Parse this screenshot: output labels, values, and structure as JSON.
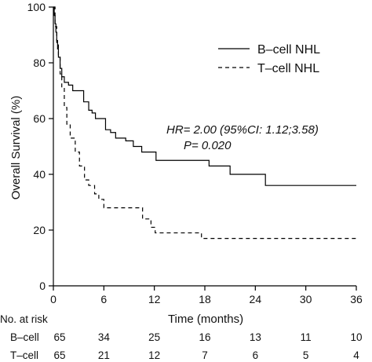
{
  "chart_data": {
    "type": "line",
    "xlabel": "Time (months)",
    "ylabel": "Overall Survival (%)",
    "xlim": [
      0,
      36
    ],
    "ylim": [
      0,
      100
    ],
    "x_ticks": [
      "0",
      "6",
      "12",
      "18",
      "24",
      "30",
      "36"
    ],
    "y_ticks": [
      "0",
      "20",
      "40",
      "60",
      "80",
      "100"
    ],
    "grid": false,
    "legend_position": "top-right",
    "series": [
      {
        "name": "B–cell NHL",
        "style": "solid",
        "color": "#000000",
        "x": [
          0,
          0.1,
          0.2,
          0.3,
          0.4,
          0.5,
          0.6,
          0.8,
          1.0,
          1.3,
          1.8,
          2.3,
          3.6,
          4.2,
          4.6,
          5.0,
          6.2,
          6.8,
          7.4,
          8.6,
          9.5,
          10.5,
          12.2,
          15.8,
          18.5,
          21.0,
          25.2,
          36.0
        ],
        "y": [
          100,
          97,
          94,
          91,
          88,
          85,
          82,
          78,
          75,
          73,
          72,
          70,
          66,
          63,
          62,
          60,
          56,
          55,
          53,
          52,
          50,
          48,
          45,
          45,
          43,
          40,
          36,
          36
        ]
      },
      {
        "name": "T–cell NHL",
        "style": "dashed",
        "color": "#000000",
        "x": [
          0,
          0.2,
          0.4,
          0.6,
          0.8,
          1.0,
          1.3,
          1.6,
          2.0,
          2.6,
          3.1,
          3.7,
          4.2,
          4.9,
          5.4,
          6.0,
          7.7,
          10.6,
          11.6,
          12.1,
          17.6,
          36.0
        ],
        "y": [
          100,
          93,
          87,
          82,
          76,
          71,
          64,
          58,
          53,
          48,
          43,
          38,
          36,
          33,
          31,
          28,
          28,
          24,
          21,
          19,
          17,
          17
        ]
      }
    ],
    "annotations": [
      "HR= 2.00 (95%CI: 1.12;3.58)",
      "P= 0.020"
    ],
    "risk_table": {
      "header": "No. at risk",
      "rows": [
        {
          "label": "B–cell",
          "values": [
            "65",
            "34",
            "25",
            "16",
            "13",
            "11",
            "10"
          ]
        },
        {
          "label": "T–cell",
          "values": [
            "65",
            "21",
            "12",
            "7",
            "6",
            "5",
            "4"
          ]
        }
      ]
    }
  }
}
